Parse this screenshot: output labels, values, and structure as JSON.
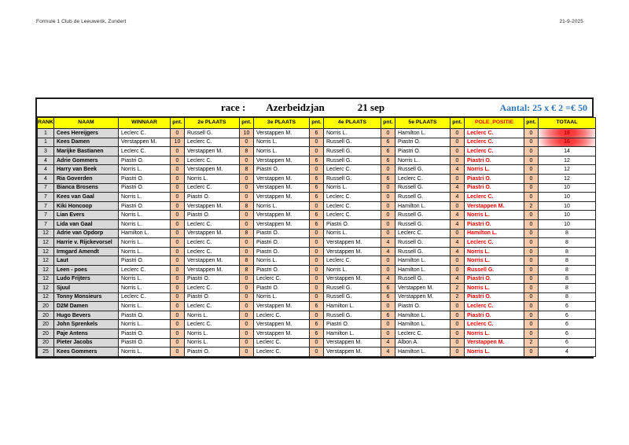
{
  "page": {
    "header_left": "Formule 1 Club de Leeuwerik, Zundert",
    "header_right": "21-9-2025"
  },
  "title": {
    "race_label": "race :",
    "race_name": "Azerbeidzjan",
    "race_date": "21 sep",
    "aantal": "Aantal: 25 x € 2 =€ 50"
  },
  "colors": {
    "header_bg": "#ffff00",
    "name_bg": "#d9d9d9",
    "points_bg": "#f8cbad",
    "pole_text": "#ff0000",
    "aantal_text": "#2e75b6",
    "highlight_text": "#c00000"
  },
  "table": {
    "headers": [
      "RANK",
      "NAAM",
      "WINNAAR",
      "pnt.",
      "2e PLAATS",
      "pnt.",
      "3e PLAATS",
      "pnt.",
      "4e PLAATS",
      "pnt.",
      "5e PLAATS",
      "pnt.",
      "POLE_POSITIE",
      "pnt.",
      "TOTAAL"
    ],
    "rows": [
      {
        "rank": "1",
        "naam": "Cees Hereijgers",
        "winnaar": "Leclerc C.",
        "pnt1": "0",
        "plaats2": "Russell G.",
        "pnt2": "10",
        "plaats3": "Verstappen M.",
        "pnt3": "6",
        "plaats4": "Norris L.",
        "pnt4": "0",
        "plaats5": "Hamilton L.",
        "pnt5": "0",
        "pole": "Leclerc C.",
        "pnt6": "0",
        "totaal": "16",
        "highlight": true
      },
      {
        "rank": "1",
        "naam": "Kees Damen",
        "winnaar": "Verstappen M.",
        "pnt1": "10",
        "plaats2": "Leclerc C.",
        "pnt2": "0",
        "plaats3": "Norris L.",
        "pnt3": "0",
        "plaats4": "Russell G.",
        "pnt4": "6",
        "plaats5": "Piastri O.",
        "pnt5": "0",
        "pole": "Leclerc C.",
        "pnt6": "0",
        "totaal": "16",
        "highlight": true
      },
      {
        "rank": "3",
        "naam": "Marijke Bastianen",
        "winnaar": "Leclerc C.",
        "pnt1": "0",
        "plaats2": "Verstappen M.",
        "pnt2": "8",
        "plaats3": "Norris L.",
        "pnt3": "0",
        "plaats4": "Russell G.",
        "pnt4": "6",
        "plaats5": "Piastri O.",
        "pnt5": "0",
        "pole": "Leclerc C.",
        "pnt6": "0",
        "totaal": "14",
        "highlight": false
      },
      {
        "rank": "4",
        "naam": "Adrie Gommers",
        "winnaar": "Piastri O.",
        "pnt1": "0",
        "plaats2": "Leclerc C.",
        "pnt2": "0",
        "plaats3": "Verstappen M.",
        "pnt3": "6",
        "plaats4": "Russell G.",
        "pnt4": "6",
        "plaats5": "Norris L.",
        "pnt5": "0",
        "pole": "Piastri O.",
        "pnt6": "0",
        "totaal": "12",
        "highlight": false
      },
      {
        "rank": "4",
        "naam": "Harry van Beek",
        "winnaar": "Norris L.",
        "pnt1": "0",
        "plaats2": "Verstappen M.",
        "pnt2": "8",
        "plaats3": "Piastri O.",
        "pnt3": "0",
        "plaats4": "Leclerc C.",
        "pnt4": "0",
        "plaats5": "Russell G.",
        "pnt5": "4",
        "pole": "Norris L.",
        "pnt6": "0",
        "totaal": "12",
        "highlight": false
      },
      {
        "rank": "4",
        "naam": "Ria Goverden",
        "winnaar": "Piastri O.",
        "pnt1": "0",
        "plaats2": "Norris L.",
        "pnt2": "0",
        "plaats3": "Verstappen M.",
        "pnt3": "6",
        "plaats4": "Russell G.",
        "pnt4": "6",
        "plaats5": "Leclerc C.",
        "pnt5": "0",
        "pole": "Piastri O.",
        "pnt6": "0",
        "totaal": "12",
        "highlight": false
      },
      {
        "rank": "7",
        "naam": "Bianca Brosens",
        "winnaar": "Piastri O.",
        "pnt1": "0",
        "plaats2": "Leclerc C.",
        "pnt2": "0",
        "plaats3": "Verstappen M.",
        "pnt3": "6",
        "plaats4": "Norris L.",
        "pnt4": "0",
        "plaats5": "Russell G.",
        "pnt5": "4",
        "pole": "Piastri O.",
        "pnt6": "0",
        "totaal": "10",
        "highlight": false
      },
      {
        "rank": "7",
        "naam": "Kees van Gaal",
        "winnaar": "Norris L.",
        "pnt1": "0",
        "plaats2": "Piastri O.",
        "pnt2": "0",
        "plaats3": "Verstappen M.",
        "pnt3": "6",
        "plaats4": "Leclerc C.",
        "pnt4": "0",
        "plaats5": "Russell G.",
        "pnt5": "4",
        "pole": "Leclerc C.",
        "pnt6": "0",
        "totaal": "10",
        "highlight": false
      },
      {
        "rank": "7",
        "naam": "Kiki Honcoop",
        "winnaar": "Piastri O.",
        "pnt1": "0",
        "plaats2": "Verstappen M.",
        "pnt2": "8",
        "plaats3": "Norris L.",
        "pnt3": "0",
        "plaats4": "Leclerc C.",
        "pnt4": "0",
        "plaats5": "Hamilton L.",
        "pnt5": "0",
        "pole": "Verstappen M.",
        "pnt6": "2",
        "totaal": "10",
        "highlight": false
      },
      {
        "rank": "7",
        "naam": "Lian Evers",
        "winnaar": "Norris L.",
        "pnt1": "0",
        "plaats2": "Piastri O.",
        "pnt2": "0",
        "plaats3": "Verstappen M.",
        "pnt3": "6",
        "plaats4": "Leclerc C.",
        "pnt4": "0",
        "plaats5": "Russell G.",
        "pnt5": "4",
        "pole": "Norris L.",
        "pnt6": "0",
        "totaal": "10",
        "highlight": false
      },
      {
        "rank": "7",
        "naam": "Lida van Gaal",
        "winnaar": "Norris L.",
        "pnt1": "0",
        "plaats2": "Leclerc C.",
        "pnt2": "0",
        "plaats3": "Verstappen M.",
        "pnt3": "6",
        "plaats4": "Piastri O.",
        "pnt4": "0",
        "plaats5": "Russell G.",
        "pnt5": "4",
        "pole": "Piastri O.",
        "pnt6": "0",
        "totaal": "10",
        "highlight": false
      },
      {
        "rank": "12",
        "naam": "Adrie van Opdorp",
        "winnaar": "Hamilton L.",
        "pnt1": "0",
        "plaats2": "Verstappen M.",
        "pnt2": "8",
        "plaats3": "Piastri O.",
        "pnt3": "0",
        "plaats4": "Norris L.",
        "pnt4": "0",
        "plaats5": "Leclerc C.",
        "pnt5": "0",
        "pole": "Hamilton L.",
        "pnt6": "0",
        "totaal": "8",
        "highlight": false
      },
      {
        "rank": "12",
        "naam": "Harrie v. Rijckevorsel",
        "winnaar": "Norris L.",
        "pnt1": "0",
        "plaats2": "Leclerc C.",
        "pnt2": "0",
        "plaats3": "Piastri O.",
        "pnt3": "0",
        "plaats4": "Verstappen M.",
        "pnt4": "4",
        "plaats5": "Russell G.",
        "pnt5": "4",
        "pole": "Leclerc C.",
        "pnt6": "0",
        "totaal": "8",
        "highlight": false
      },
      {
        "rank": "12",
        "naam": "Irmgard Amendt",
        "winnaar": "Norris L.",
        "pnt1": "0",
        "plaats2": "Leclerc C.",
        "pnt2": "0",
        "plaats3": "Piastri O.",
        "pnt3": "0",
        "plaats4": "Verstappen M.",
        "pnt4": "4",
        "plaats5": "Russell G.",
        "pnt5": "4",
        "pole": "Norris L.",
        "pnt6": "0",
        "totaal": "8",
        "highlight": false
      },
      {
        "rank": "12",
        "naam": "Laut",
        "winnaar": "Piastri O.",
        "pnt1": "0",
        "plaats2": "Verstappen M.",
        "pnt2": "8",
        "plaats3": "Norris L.",
        "pnt3": "0",
        "plaats4": "Leclerc C.",
        "pnt4": "0",
        "plaats5": "Hamilton L.",
        "pnt5": "0",
        "pole": "Norris L.",
        "pnt6": "0",
        "totaal": "8",
        "highlight": false
      },
      {
        "rank": "12",
        "naam": "Leen - poes",
        "winnaar": "Leclerc C.",
        "pnt1": "0",
        "plaats2": "Verstappen M.",
        "pnt2": "8",
        "plaats3": "Piastri O.",
        "pnt3": "0",
        "plaats4": "Norris L.",
        "pnt4": "0",
        "plaats5": "Hamilton L.",
        "pnt5": "0",
        "pole": "Russell G.",
        "pnt6": "0",
        "totaal": "8",
        "highlight": false
      },
      {
        "rank": "12",
        "naam": "Ludo Frijters",
        "winnaar": "Norris L.",
        "pnt1": "0",
        "plaats2": "Piastri O.",
        "pnt2": "0",
        "plaats3": "Leclerc C.",
        "pnt3": "0",
        "plaats4": "Verstappen M.",
        "pnt4": "4",
        "plaats5": "Russell G.",
        "pnt5": "4",
        "pole": "Piastri O.",
        "pnt6": "0",
        "totaal": "8",
        "highlight": false
      },
      {
        "rank": "12",
        "naam": "Sjuul",
        "winnaar": "Norris L.",
        "pnt1": "0",
        "plaats2": "Leclerc C.",
        "pnt2": "0",
        "plaats3": "Piastri O.",
        "pnt3": "0",
        "plaats4": "Russell G.",
        "pnt4": "6",
        "plaats5": "Verstappen M.",
        "pnt5": "2",
        "pole": "Norris L.",
        "pnt6": "0",
        "totaal": "8",
        "highlight": false
      },
      {
        "rank": "12",
        "naam": "Tonny Monsieurs",
        "winnaar": "Leclerc C.",
        "pnt1": "0",
        "plaats2": "Piastri O.",
        "pnt2": "0",
        "plaats3": "Norris L.",
        "pnt3": "0",
        "plaats4": "Russell G.",
        "pnt4": "6",
        "plaats5": "Verstappen M.",
        "pnt5": "2",
        "pole": "Piastri O.",
        "pnt6": "0",
        "totaal": "8",
        "highlight": false
      },
      {
        "rank": "20",
        "naam": "D2M Damen",
        "winnaar": "Norris L.",
        "pnt1": "0",
        "plaats2": "Leclerc C.",
        "pnt2": "0",
        "plaats3": "Verstappen M.",
        "pnt3": "6",
        "plaats4": "Hamilton L.",
        "pnt4": "0",
        "plaats5": "Piastri O.",
        "pnt5": "0",
        "pole": "Leclerc C.",
        "pnt6": "0",
        "totaal": "6",
        "highlight": false
      },
      {
        "rank": "20",
        "naam": "Hugo Bevers",
        "winnaar": "Piastri O.",
        "pnt1": "0",
        "plaats2": "Norris L.",
        "pnt2": "0",
        "plaats3": "Leclerc C.",
        "pnt3": "0",
        "plaats4": "Russell G.",
        "pnt4": "6",
        "plaats5": "Hamilton L.",
        "pnt5": "0",
        "pole": "Piastri O.",
        "pnt6": "0",
        "totaal": "6",
        "highlight": false
      },
      {
        "rank": "20",
        "naam": "John Sprenkels",
        "winnaar": "Norris L.",
        "pnt1": "0",
        "plaats2": "Leclerc C.",
        "pnt2": "0",
        "plaats3": "Verstappen M.",
        "pnt3": "6",
        "plaats4": "Piastri O.",
        "pnt4": "0",
        "plaats5": "Hamilton L.",
        "pnt5": "0",
        "pole": "Leclerc C.",
        "pnt6": "0",
        "totaal": "6",
        "highlight": false
      },
      {
        "rank": "20",
        "naam": "Paje Antens",
        "winnaar": "Piastri O.",
        "pnt1": "0",
        "plaats2": "Norris L.",
        "pnt2": "0",
        "plaats3": "Verstappen M.",
        "pnt3": "6",
        "plaats4": "Hamilton L.",
        "pnt4": "0",
        "plaats5": "Leclerc C.",
        "pnt5": "0",
        "pole": "Norris L.",
        "pnt6": "0",
        "totaal": "6",
        "highlight": false
      },
      {
        "rank": "20",
        "naam": "Pieter Jacobs",
        "winnaar": "Piastri O.",
        "pnt1": "0",
        "plaats2": "Norris L.",
        "pnt2": "0",
        "plaats3": "Leclerc C.",
        "pnt3": "0",
        "plaats4": "Verstappen M.",
        "pnt4": "4",
        "plaats5": "Albon A.",
        "pnt5": "0",
        "pole": "Verstappen M.",
        "pnt6": "2",
        "totaal": "6",
        "highlight": false
      },
      {
        "rank": "25",
        "naam": "Kees Gommers",
        "winnaar": "Norris L.",
        "pnt1": "0",
        "plaats2": "Piastri O.",
        "pnt2": "0",
        "plaats3": "Leclerc C.",
        "pnt3": "0",
        "plaats4": "Verstappen M.",
        "pnt4": "4",
        "plaats5": "Hamilton L.",
        "pnt5": "0",
        "pole": "Norris L.",
        "pnt6": "0",
        "totaal": "4",
        "highlight": false
      }
    ]
  }
}
